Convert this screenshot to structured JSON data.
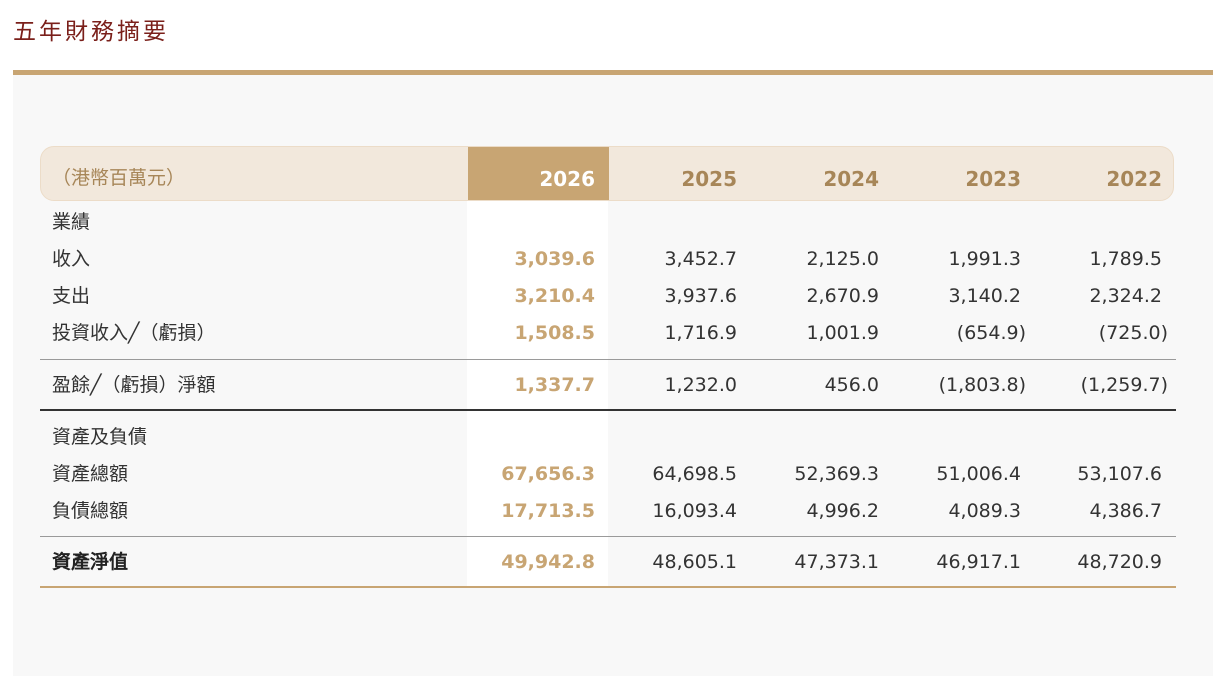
{
  "title": "五年財務摘要",
  "table": {
    "unit_label": "（港幣百萬元）",
    "years": [
      "2026",
      "2025",
      "2024",
      "2023",
      "2022"
    ],
    "sections": {
      "results": "業績",
      "assets": "資產及負債"
    },
    "rows": {
      "income": {
        "label": "收入",
        "values": [
          "3,039.6",
          "3,452.7",
          "2,125.0",
          "1,991.3",
          "1,789.5"
        ]
      },
      "expenditure": {
        "label": "支出",
        "values": [
          "3,210.4",
          "3,937.6",
          "2,670.9",
          "3,140.2",
          "2,324.2"
        ]
      },
      "investment": {
        "label": "投資收入╱（虧損）",
        "values": [
          "1,508.5",
          "1,716.9",
          "1,001.9",
          "(654.9)",
          "(725.0)"
        ]
      },
      "surplus": {
        "label": "盈餘╱（虧損）淨額",
        "values": [
          "1,337.7",
          "1,232.0",
          "456.0",
          "(1,803.8)",
          "(1,259.7)"
        ]
      },
      "total_assets": {
        "label": "資產總額",
        "values": [
          "67,656.3",
          "64,698.5",
          "52,369.3",
          "51,006.4",
          "53,107.6"
        ]
      },
      "total_liabilities": {
        "label": "負債總額",
        "values": [
          "17,713.5",
          "16,093.4",
          "4,996.2",
          "4,089.3",
          "4,386.7"
        ]
      },
      "net_assets": {
        "label": "資產淨值",
        "values": [
          "49,942.8",
          "48,605.1",
          "47,373.1",
          "46,917.1",
          "48,720.9"
        ]
      }
    }
  },
  "colors": {
    "accent_gold": "#c8a573",
    "title_red": "#7a1f1a",
    "header_band": "#f2e8dc"
  }
}
